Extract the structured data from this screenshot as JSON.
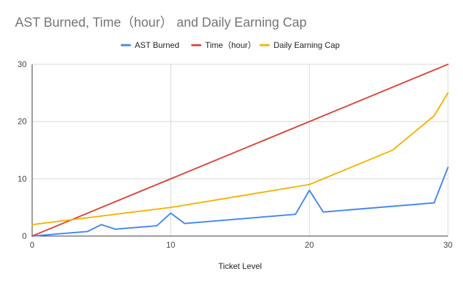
{
  "chart_data": {
    "type": "line",
    "title": "AST Burned, Time（hour） and Daily Earning Cap",
    "xlabel": "Ticket Level",
    "ylabel": "",
    "xlim": [
      0,
      30
    ],
    "ylim": [
      0,
      30
    ],
    "x_ticks": [
      0,
      10,
      20,
      30
    ],
    "y_ticks": [
      0,
      10,
      20,
      30
    ],
    "grid": true,
    "legend_position": "top",
    "series": [
      {
        "name": "AST Burned",
        "color": "#4285f4",
        "points": [
          [
            0,
            0
          ],
          [
            1,
            0.2
          ],
          [
            2,
            0.4
          ],
          [
            3,
            0.6
          ],
          [
            4,
            0.8
          ],
          [
            5,
            2
          ],
          [
            6,
            1.2
          ],
          [
            7,
            1.4
          ],
          [
            8,
            1.6
          ],
          [
            9,
            1.8
          ],
          [
            10,
            4
          ],
          [
            11,
            2.2
          ],
          [
            19,
            3.8
          ],
          [
            20,
            8
          ],
          [
            21,
            4.2
          ],
          [
            29,
            5.8
          ],
          [
            30,
            12
          ]
        ]
      },
      {
        "name": "Time（hour）",
        "color": "#db4437",
        "points": [
          [
            0,
            0
          ],
          [
            30,
            30
          ]
        ]
      },
      {
        "name": "Daily Earning Cap",
        "color": "#f4b400",
        "points": [
          [
            0,
            2
          ],
          [
            10,
            5
          ],
          [
            20,
            9
          ],
          [
            26,
            15
          ],
          [
            29,
            21
          ],
          [
            30,
            25
          ]
        ]
      }
    ]
  }
}
